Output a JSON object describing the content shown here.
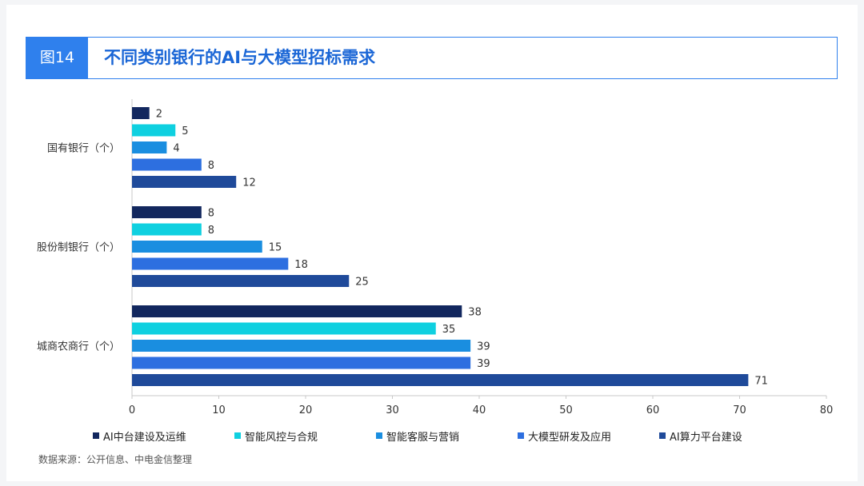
{
  "figure_tag": "图14",
  "figure_title": "不同类别银行的AI与大模型招标需求",
  "source": "数据来源：公开信息、中电金信整理",
  "chart_data": {
    "type": "bar",
    "orientation": "horizontal",
    "categories": [
      "国有银行（个）",
      "股份制银行（个）",
      "城商农商行（个）"
    ],
    "series": [
      {
        "name": "AI中台建设及运维",
        "color": "#12275e",
        "values": [
          2,
          8,
          38
        ]
      },
      {
        "name": "智能风控与合规",
        "color": "#0fd0e0",
        "values": [
          5,
          8,
          35
        ]
      },
      {
        "name": "智能客服与营销",
        "color": "#1a8ee0",
        "values": [
          4,
          15,
          39
        ]
      },
      {
        "name": "大模型研发及应用",
        "color": "#2d6fe0",
        "values": [
          8,
          18,
          39
        ]
      },
      {
        "name": "AI算力平台建设",
        "color": "#1f4a9a",
        "values": [
          12,
          25,
          71
        ]
      }
    ],
    "xlim": [
      0,
      80
    ],
    "xticks": [
      0,
      10,
      20,
      30,
      40,
      50,
      60,
      70,
      80
    ],
    "data_labels": true,
    "grid": false,
    "legend_position": "bottom"
  }
}
